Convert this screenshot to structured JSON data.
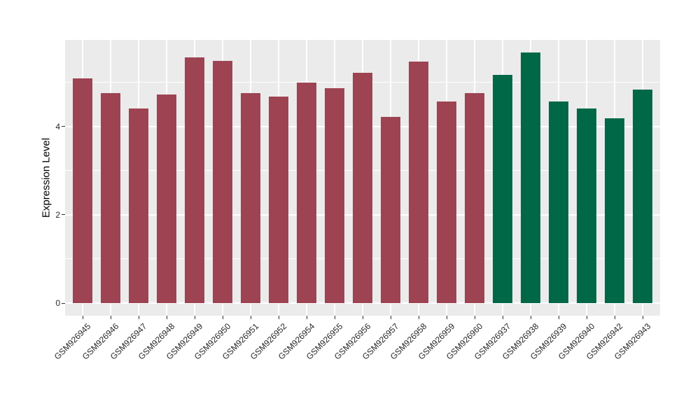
{
  "chart_data": {
    "type": "bar",
    "title": "",
    "xlabel": "",
    "ylabel": "Expression Level",
    "ylim": [
      -0.28,
      5.95
    ],
    "yticks": [
      0,
      2,
      4
    ],
    "grid": {
      "major_values": [
        0,
        2,
        4
      ],
      "minor_values": [
        1,
        3,
        5
      ],
      "color": "#FFFFFF",
      "vertical_at_each_category": true
    },
    "legend_position": "none",
    "panel_background": "#EBEBEB",
    "group_colors": {
      "red": "#9E4352",
      "green": "#006847"
    },
    "categories": [
      "GSM926945",
      "GSM926946",
      "GSM926947",
      "GSM926948",
      "GSM926949",
      "GSM926950",
      "GSM926951",
      "GSM926952",
      "GSM926954",
      "GSM926955",
      "GSM926956",
      "GSM926957",
      "GSM926958",
      "GSM926959",
      "GSM926960",
      "GSM926937",
      "GSM926938",
      "GSM926939",
      "GSM926940",
      "GSM926942",
      "GSM926943"
    ],
    "groups": [
      "red",
      "red",
      "red",
      "red",
      "red",
      "red",
      "red",
      "red",
      "red",
      "red",
      "red",
      "red",
      "red",
      "red",
      "red",
      "green",
      "green",
      "green",
      "green",
      "green",
      "green"
    ],
    "series": [
      {
        "name": "Expression Level",
        "values": [
          5.08,
          4.75,
          4.41,
          4.73,
          5.56,
          5.49,
          4.76,
          4.67,
          5.0,
          4.87,
          5.21,
          4.21,
          5.46,
          4.57,
          4.75,
          5.17,
          5.67,
          4.57,
          4.41,
          4.19,
          4.83
        ]
      }
    ]
  }
}
